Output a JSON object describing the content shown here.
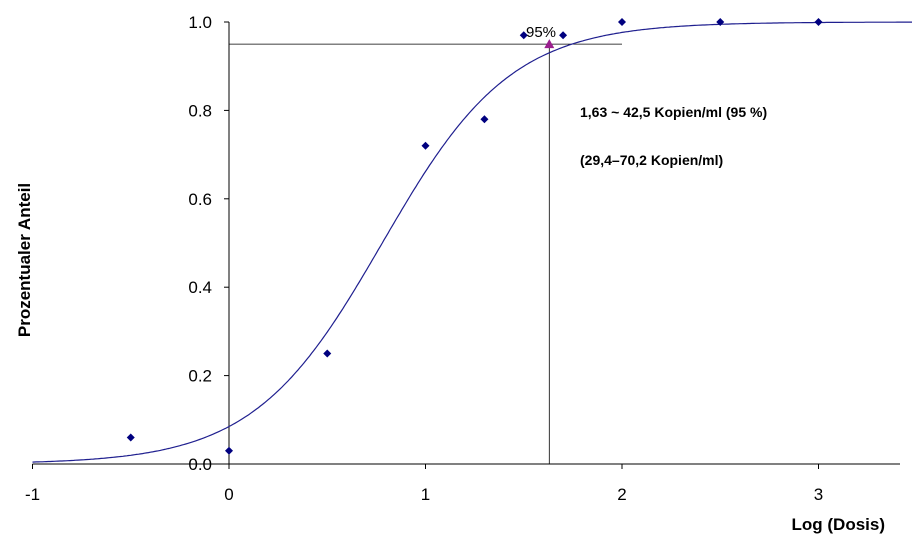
{
  "chart_data": {
    "type": "scatter",
    "title": "",
    "xlabel": "Log (Dosis)",
    "ylabel": "Prozentualer Anteil",
    "xlim": [
      -1,
      3.5
    ],
    "ylim": [
      0,
      1
    ],
    "x_ticks": [
      "-1",
      "0",
      "1",
      "2",
      "3"
    ],
    "y_ticks": [
      "0.0",
      "0.2",
      "0.4",
      "0.6",
      "0.8",
      "1.0"
    ],
    "grid": false,
    "colors": {
      "points": "#00007f",
      "curve": "#1f1f8f",
      "highlight": "#9b1f8f",
      "guides": "#000000"
    },
    "series": [
      {
        "values": [
          {
            "x": -0.5,
            "y": 0.06
          },
          {
            "x": 0.0,
            "y": 0.03
          },
          {
            "x": 0.5,
            "y": 0.25
          },
          {
            "x": 1.0,
            "y": 0.72
          },
          {
            "x": 1.3,
            "y": 0.78
          },
          {
            "x": 1.5,
            "y": 0.97
          },
          {
            "x": 1.7,
            "y": 0.97
          },
          {
            "x": 2.0,
            "y": 1.0
          },
          {
            "x": 2.5,
            "y": 1.0
          },
          {
            "x": 3.0,
            "y": 1.0
          }
        ]
      }
    ],
    "fit_curve": {
      "type": "logistic",
      "midpoint": 0.78,
      "slope": 3.05
    },
    "highlight_point": {
      "x": 1.63,
      "y": 0.95,
      "label": "95%"
    },
    "annotations": [
      "1,63 ~ 42,5 Kopien/ml (95 %)",
      "(29,4–70,2 Kopien/ml)"
    ]
  }
}
